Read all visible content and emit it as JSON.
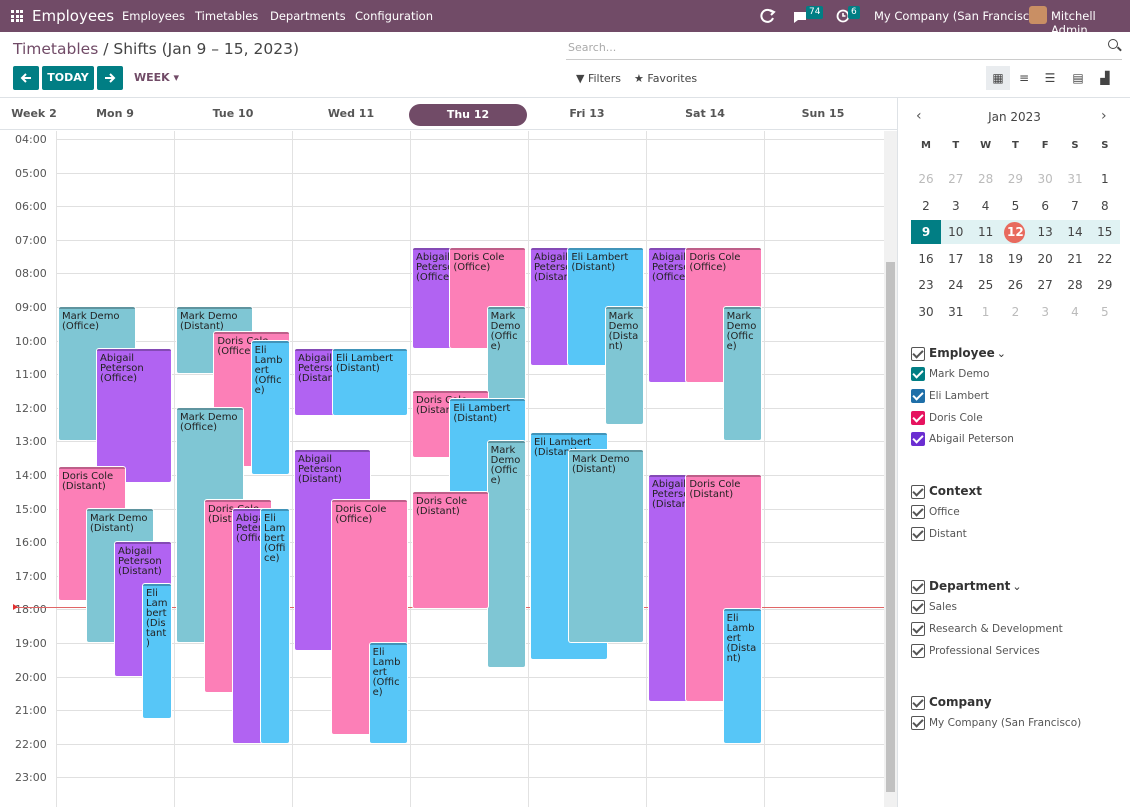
{
  "topbar": {
    "app": "Employees",
    "menus": [
      "Employees",
      "Timetables",
      "Departments",
      "Configuration"
    ],
    "chat_count": "74",
    "activity_count": "6",
    "company": "My Company (San Francisco)",
    "user": "Mitchell Admin"
  },
  "breadcrumb": {
    "parent": "Timetables",
    "current": "Shifts (Jan 9 – 15, 2023)"
  },
  "search": {
    "placeholder": "Search..."
  },
  "controls": {
    "today": "TODAY",
    "scale": "WEEK",
    "filters": "Filters",
    "favorites": "Favorites"
  },
  "days": [
    "Week 2",
    "Mon 9",
    "Tue 10",
    "Wed 11",
    "Thu 12",
    "Fri 13",
    "Sat 14",
    "Sun 15"
  ],
  "hours": [
    "04:00",
    "05:00",
    "06:00",
    "07:00",
    "08:00",
    "09:00",
    "10:00",
    "11:00",
    "12:00",
    "13:00",
    "14:00",
    "15:00",
    "16:00",
    "17:00",
    "18:00",
    "19:00",
    "20:00",
    "21:00",
    "22:00",
    "23:00"
  ],
  "colors": {
    "mark": "#7fc6d4",
    "eli": "#57c6f7",
    "doris": "#fc7fb7",
    "abigail": "#b163f2",
    "brand": "#714b67",
    "accent": "#017e84"
  },
  "events": [
    {
      "day": 0,
      "start": 9.0,
      "end": 13.0,
      "emp": "mark",
      "name": "Mark Demo",
      "ctx": "(Office)"
    },
    {
      "day": 0,
      "start": 10.25,
      "end": 14.25,
      "emp": "abigail",
      "name": "Abigail Peterson",
      "ctx": "(Office)"
    },
    {
      "day": 0,
      "start": 13.75,
      "end": 17.75,
      "emp": "doris",
      "name": "Doris Cole",
      "ctx": "(Distant)"
    },
    {
      "day": 0,
      "start": 15.0,
      "end": 19.0,
      "emp": "mark",
      "name": "Mark Demo",
      "ctx": "(Distant)"
    },
    {
      "day": 0,
      "start": 16.0,
      "end": 20.0,
      "emp": "abigail",
      "name": "Abigail Peterson",
      "ctx": "(Distant)"
    },
    {
      "day": 0,
      "start": 17.25,
      "end": 21.25,
      "emp": "eli",
      "name": "Eli Lambert",
      "ctx": "(Distant)"
    },
    {
      "day": 1,
      "start": 9.0,
      "end": 11.0,
      "emp": "mark",
      "name": "Mark Demo",
      "ctx": "(Distant)"
    },
    {
      "day": 1,
      "start": 9.75,
      "end": 13.75,
      "emp": "doris",
      "name": "Doris Cole",
      "ctx": "(Office)"
    },
    {
      "day": 1,
      "start": 10.0,
      "end": 14.0,
      "emp": "eli",
      "name": "Eli Lambert",
      "ctx": "(Office)"
    },
    {
      "day": 1,
      "start": 12.0,
      "end": 19.0,
      "emp": "mark",
      "name": "Mark Demo",
      "ctx": "(Office)"
    },
    {
      "day": 1,
      "start": 14.75,
      "end": 20.5,
      "emp": "doris",
      "name": "Doris Cole",
      "ctx": "(Distant)"
    },
    {
      "day": 1,
      "start": 15.0,
      "end": 22.0,
      "emp": "abigail",
      "name": "Abigail Peterson",
      "ctx": "(Office)"
    },
    {
      "day": 1,
      "start": 15.0,
      "end": 22.0,
      "emp": "eli",
      "name": "Eli Lambert",
      "ctx": "(Office)"
    },
    {
      "day": 2,
      "start": 10.25,
      "end": 12.25,
      "emp": "abigail",
      "name": "Abigail Peterson",
      "ctx": "(Distant)"
    },
    {
      "day": 2,
      "start": 10.25,
      "end": 12.25,
      "emp": "eli",
      "name": "Eli Lambert",
      "ctx": "(Distant)"
    },
    {
      "day": 2,
      "start": 13.25,
      "end": 19.25,
      "emp": "abigail",
      "name": "Abigail Peterson",
      "ctx": "(Distant)"
    },
    {
      "day": 2,
      "start": 14.75,
      "end": 21.75,
      "emp": "doris",
      "name": "Doris Cole",
      "ctx": "(Office)"
    },
    {
      "day": 2,
      "start": 19.0,
      "end": 22.0,
      "emp": "eli",
      "name": "Eli Lambert",
      "ctx": "(Office)"
    },
    {
      "day": 3,
      "start": 7.25,
      "end": 10.25,
      "emp": "abigail",
      "name": "Abigail Peterson",
      "ctx": "(Office)"
    },
    {
      "day": 3,
      "start": 7.25,
      "end": 10.25,
      "emp": "doris",
      "name": "Doris Cole",
      "ctx": "(Office)"
    },
    {
      "day": 3,
      "start": 9.0,
      "end": 12.0,
      "emp": "mark",
      "name": "Mark Demo",
      "ctx": "(Office)"
    },
    {
      "day": 3,
      "start": 11.5,
      "end": 13.5,
      "emp": "doris",
      "name": "Doris Cole",
      "ctx": "(Distant)"
    },
    {
      "day": 3,
      "start": 11.75,
      "end": 15.5,
      "emp": "eli",
      "name": "Eli Lambert",
      "ctx": "(Distant)"
    },
    {
      "day": 3,
      "start": 13.0,
      "end": 19.75,
      "emp": "mark",
      "name": "Mark Demo",
      "ctx": "(Office)"
    },
    {
      "day": 3,
      "start": 14.5,
      "end": 18.0,
      "emp": "doris",
      "name": "Doris Cole",
      "ctx": "(Distant)"
    },
    {
      "day": 4,
      "start": 7.25,
      "end": 10.75,
      "emp": "abigail",
      "name": "Abigail Peterson",
      "ctx": "(Distant)"
    },
    {
      "day": 4,
      "start": 7.25,
      "end": 10.75,
      "emp": "eli",
      "name": "Eli Lambert",
      "ctx": "(Distant)"
    },
    {
      "day": 4,
      "start": 9.0,
      "end": 12.5,
      "emp": "mark",
      "name": "Mark Demo",
      "ctx": "(Distant)"
    },
    {
      "day": 4,
      "start": 12.75,
      "end": 19.5,
      "emp": "eli",
      "name": "Eli Lambert",
      "ctx": "(Distant)"
    },
    {
      "day": 4,
      "start": 13.25,
      "end": 19.0,
      "emp": "mark",
      "name": "Mark Demo",
      "ctx": "(Distant)"
    },
    {
      "day": 5,
      "start": 7.25,
      "end": 11.25,
      "emp": "abigail",
      "name": "Abigail Peterson",
      "ctx": "(Office)"
    },
    {
      "day": 5,
      "start": 7.25,
      "end": 11.25,
      "emp": "doris",
      "name": "Doris Cole",
      "ctx": "(Office)"
    },
    {
      "day": 5,
      "start": 9.0,
      "end": 13.0,
      "emp": "mark",
      "name": "Mark Demo",
      "ctx": "(Office)"
    },
    {
      "day": 5,
      "start": 14.0,
      "end": 20.75,
      "emp": "abigail",
      "name": "Abigail Peterson",
      "ctx": "(Distant)"
    },
    {
      "day": 5,
      "start": 14.0,
      "end": 20.75,
      "emp": "doris",
      "name": "Doris Cole",
      "ctx": "(Distant)"
    },
    {
      "day": 5,
      "start": 18.0,
      "end": 22.0,
      "emp": "eli",
      "name": "Eli Lambert",
      "ctx": "(Distant)"
    }
  ],
  "minical": {
    "month": "Jan 2023",
    "weekdays": [
      "M",
      "T",
      "W",
      "T",
      "F",
      "S",
      "S"
    ],
    "weeks": [
      [
        "26",
        "27",
        "28",
        "29",
        "30",
        "31",
        "1"
      ],
      [
        "2",
        "3",
        "4",
        "5",
        "6",
        "7",
        "8"
      ],
      [
        "9",
        "10",
        "11",
        "12",
        "13",
        "14",
        "15"
      ],
      [
        "16",
        "17",
        "18",
        "19",
        "20",
        "21",
        "22"
      ],
      [
        "23",
        "24",
        "25",
        "26",
        "27",
        "28",
        "29"
      ],
      [
        "30",
        "31",
        "1",
        "2",
        "3",
        "4",
        "5"
      ]
    ]
  },
  "filters": [
    {
      "title": "Employee",
      "items": [
        "Mark Demo",
        "Eli Lambert",
        "Doris Cole",
        "Abigail Peterson"
      ],
      "colors": [
        "#017e84",
        "#1f6fa8",
        "#e6135f",
        "#6b2ed1"
      ]
    },
    {
      "title": "Context",
      "items": [
        "Office",
        "Distant"
      ]
    },
    {
      "title": "Department",
      "items": [
        "Sales",
        "Research & Development",
        "Professional Services"
      ]
    },
    {
      "title": "Company",
      "items": [
        "My Company (San Francisco)"
      ]
    }
  ]
}
